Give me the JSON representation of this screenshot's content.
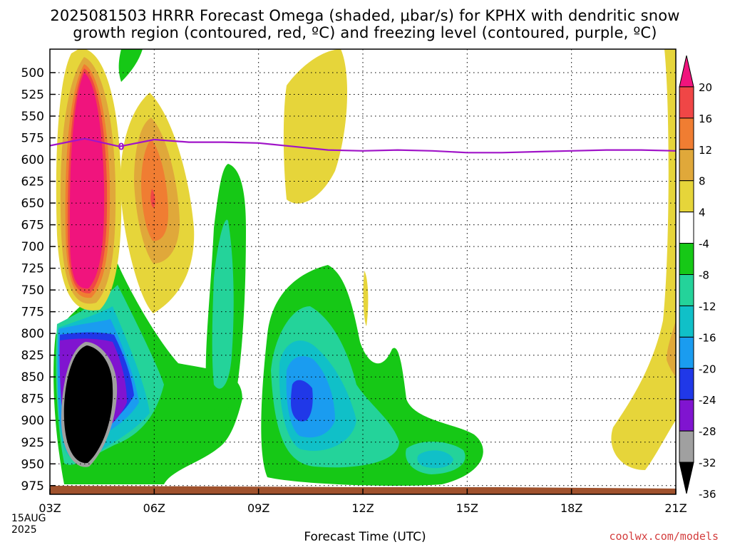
{
  "title_line1": "2025081503 HRRR Forecast Omega (shaded, μbar/s) for KPHX with dendritic snow",
  "title_line2": "growth region (contoured, red, ºC) and freezing level (contoured, purple, ºC)",
  "xlabel": "Forecast Time (UTC)",
  "credit": "coolwx.com/models",
  "date_day": "15AUG",
  "date_year": "2025",
  "chart_data": {
    "type": "heatmap",
    "x_ticks": [
      "03Z",
      "06Z",
      "09Z",
      "12Z",
      "15Z",
      "18Z",
      "21Z"
    ],
    "x_tick_hours": [
      3,
      6,
      9,
      12,
      15,
      18,
      21
    ],
    "xlim_hours": [
      3,
      21
    ],
    "y_ticks": [
      500,
      525,
      550,
      575,
      600,
      625,
      650,
      675,
      700,
      725,
      750,
      775,
      800,
      825,
      850,
      875,
      900,
      925,
      950,
      975
    ],
    "ylim_hpa": [
      473,
      985
    ],
    "ylabel": "",
    "colorbar": {
      "labels": [
        "20",
        "16",
        "12",
        "8",
        "4",
        "-4",
        "-8",
        "-12",
        "-16",
        "-20",
        "-24",
        "-28",
        "-32",
        "-36"
      ],
      "colors": [
        "#f0147d",
        "#f04646",
        "#f07d32",
        "#e0a83a",
        "#e6d53a",
        "#ffffff",
        "#16c816",
        "#24d39a",
        "#10c0c8",
        "#1a9cf0",
        "#2038e8",
        "#8014d0",
        "#a0a0a0",
        "#000000"
      ]
    },
    "freezing_level": {
      "label": "0",
      "color": "#a014c8",
      "hours": [
        3,
        4,
        5,
        6,
        7,
        8,
        9,
        10,
        11,
        12,
        13,
        14,
        15,
        16,
        17,
        18,
        19,
        20,
        21
      ],
      "pressure_hpa": [
        584,
        576,
        585,
        577,
        580,
        580,
        581,
        585,
        589,
        590,
        589,
        590,
        592,
        592,
        591,
        590,
        589,
        589,
        590
      ]
    }
  }
}
